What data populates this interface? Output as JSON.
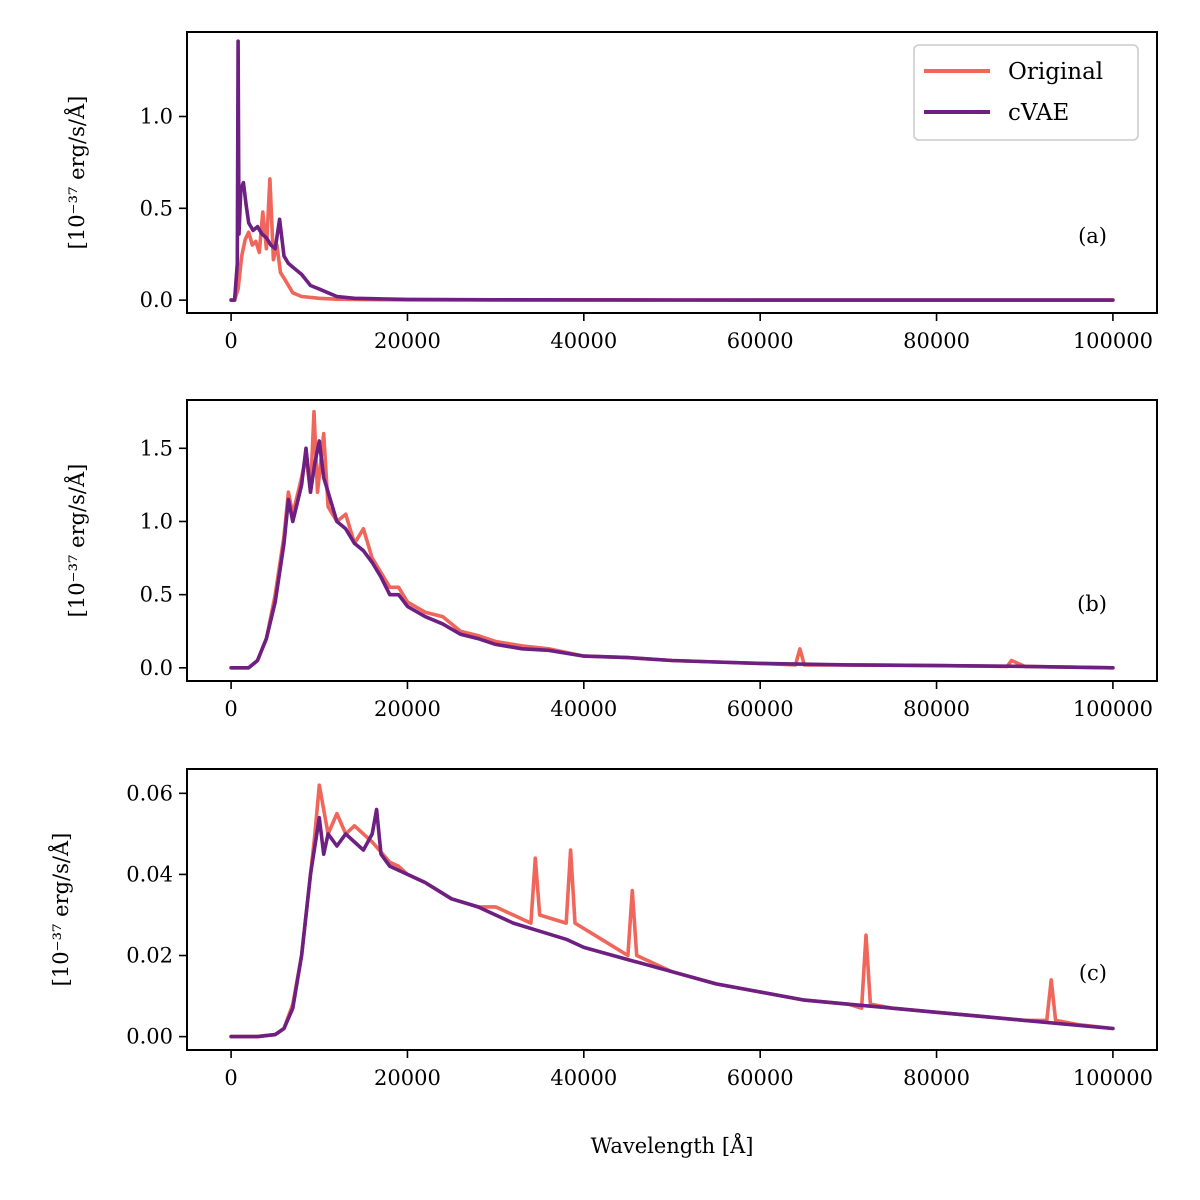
{
  "colors": {
    "original": "#f0665a",
    "cvae": "#6e1f82"
  },
  "legend": {
    "placement": "upper-right of panel (a)",
    "entries": [
      {
        "name": "Original",
        "color": "#f0665a"
      },
      {
        "name": "cVAE",
        "color": "#6e1f82"
      }
    ]
  },
  "chart_data": [
    {
      "type": "line",
      "panel_label": "(a)",
      "ylabel": "[10⁻³⁷ erg/s/Å]",
      "xlabel": "",
      "xlim": [
        -5000,
        105000
      ],
      "ylim": [
        -0.07,
        1.46
      ],
      "xticks": [
        0,
        20000,
        40000,
        60000,
        80000,
        100000
      ],
      "xtick_labels": [
        "0",
        "20000",
        "40000",
        "60000",
        "80000",
        "100000"
      ],
      "yticks": [
        0.0,
        0.5,
        1.0
      ],
      "ytick_labels": [
        "0.0",
        "0.5",
        "1.0"
      ],
      "series": [
        {
          "name": "Original",
          "x": [
            0,
            400,
            800,
            1200,
            1600,
            2000,
            2400,
            2800,
            3200,
            3600,
            4000,
            4400,
            4800,
            5200,
            5600,
            6000,
            7000,
            8000,
            10000,
            12000,
            15000,
            20000,
            30000,
            50000,
            70000,
            100000
          ],
          "y": [
            0,
            0.0,
            0.06,
            0.24,
            0.33,
            0.37,
            0.3,
            0.32,
            0.26,
            0.48,
            0.28,
            0.66,
            0.22,
            0.3,
            0.15,
            0.12,
            0.04,
            0.02,
            0.01,
            0.005,
            0.003,
            0.002,
            0.001,
            0.0,
            0.0,
            0.0
          ]
        },
        {
          "name": "cVAE",
          "x": [
            0,
            400,
            700,
            800,
            900,
            1100,
            1400,
            1700,
            2000,
            2500,
            3000,
            3500,
            4000,
            4500,
            5000,
            5500,
            6000,
            6500,
            7000,
            8000,
            9000,
            10000,
            11000,
            12000,
            14000,
            16000,
            20000,
            30000,
            50000,
            70000,
            100000
          ],
          "y": [
            0,
            0.0,
            0.2,
            1.41,
            0.36,
            0.6,
            0.64,
            0.52,
            0.42,
            0.38,
            0.4,
            0.36,
            0.34,
            0.3,
            0.28,
            0.44,
            0.24,
            0.2,
            0.18,
            0.14,
            0.08,
            0.06,
            0.04,
            0.02,
            0.01,
            0.008,
            0.004,
            0.002,
            0.001,
            0.0,
            0.0
          ]
        }
      ]
    },
    {
      "type": "line",
      "panel_label": "(b)",
      "ylabel": "[10⁻³⁷ erg/s/Å]",
      "xlabel": "",
      "xlim": [
        -5000,
        105000
      ],
      "ylim": [
        -0.09,
        1.83
      ],
      "xticks": [
        0,
        20000,
        40000,
        60000,
        80000,
        100000
      ],
      "xtick_labels": [
        "0",
        "20000",
        "40000",
        "60000",
        "80000",
        "100000"
      ],
      "yticks": [
        0.0,
        0.5,
        1.0,
        1.5
      ],
      "ytick_labels": [
        "0.0",
        "0.5",
        "1.0",
        "1.5"
      ],
      "series": [
        {
          "name": "Original",
          "x": [
            0,
            2000,
            3000,
            4000,
            5000,
            6000,
            6500,
            7000,
            8000,
            8500,
            9000,
            9400,
            9800,
            10500,
            11000,
            12000,
            13000,
            14000,
            15000,
            16000,
            17000,
            18000,
            19000,
            20000,
            22000,
            24000,
            26000,
            28000,
            30000,
            33000,
            36000,
            40000,
            45000,
            50000,
            55000,
            60000,
            64000,
            64500,
            65000,
            70000,
            80000,
            88000,
            88500,
            90000,
            100000
          ],
          "y": [
            0,
            0.0,
            0.05,
            0.2,
            0.5,
            0.9,
            1.2,
            1.05,
            1.3,
            1.45,
            1.2,
            1.75,
            1.2,
            1.6,
            1.1,
            1.0,
            1.05,
            0.85,
            0.95,
            0.75,
            0.65,
            0.55,
            0.55,
            0.45,
            0.38,
            0.35,
            0.25,
            0.22,
            0.18,
            0.15,
            0.13,
            0.08,
            0.07,
            0.05,
            0.04,
            0.03,
            0.02,
            0.13,
            0.02,
            0.02,
            0.015,
            0.01,
            0.05,
            0.01,
            0.0
          ]
        },
        {
          "name": "cVAE",
          "x": [
            0,
            2000,
            3000,
            4000,
            5000,
            6000,
            6500,
            7000,
            8000,
            8500,
            9000,
            9500,
            10000,
            10500,
            11000,
            12000,
            13000,
            14000,
            15000,
            16000,
            17000,
            18000,
            19000,
            20000,
            22000,
            24000,
            26000,
            28000,
            30000,
            33000,
            36000,
            40000,
            45000,
            50000,
            55000,
            60000,
            70000,
            80000,
            90000,
            100000
          ],
          "y": [
            0,
            0.0,
            0.05,
            0.2,
            0.45,
            0.85,
            1.15,
            1.0,
            1.25,
            1.5,
            1.2,
            1.4,
            1.55,
            1.3,
            1.2,
            1.0,
            0.95,
            0.85,
            0.8,
            0.72,
            0.62,
            0.5,
            0.5,
            0.42,
            0.35,
            0.3,
            0.23,
            0.2,
            0.16,
            0.13,
            0.12,
            0.08,
            0.07,
            0.05,
            0.04,
            0.03,
            0.02,
            0.015,
            0.01,
            0.0
          ]
        }
      ]
    },
    {
      "type": "line",
      "panel_label": "(c)",
      "ylabel": "[10⁻³⁷ erg/s/Å]",
      "xlabel": "Wavelength [Å]",
      "xlim": [
        -5000,
        105000
      ],
      "ylim": [
        -0.0033,
        0.066
      ],
      "xticks": [
        0,
        20000,
        40000,
        60000,
        80000,
        100000
      ],
      "xtick_labels": [
        "0",
        "20000",
        "40000",
        "60000",
        "80000",
        "100000"
      ],
      "yticks": [
        0.0,
        0.02,
        0.04,
        0.06
      ],
      "ytick_labels": [
        "0.00",
        "0.02",
        "0.04",
        "0.06"
      ],
      "series": [
        {
          "name": "Original",
          "x": [
            0,
            3000,
            5000,
            6000,
            7000,
            8000,
            9000,
            9500,
            10000,
            11000,
            12000,
            13000,
            14000,
            16000,
            18000,
            19000,
            20000,
            22000,
            25000,
            28000,
            30000,
            32000,
            34000,
            34500,
            35000,
            38000,
            38500,
            39000,
            42000,
            45000,
            45500,
            46000,
            50000,
            55000,
            60000,
            65000,
            70000,
            71500,
            72000,
            72500,
            75000,
            80000,
            85000,
            90000,
            92500,
            93000,
            93500,
            96000,
            100000
          ],
          "y": [
            0,
            0.0,
            0.0005,
            0.002,
            0.008,
            0.02,
            0.04,
            0.05,
            0.062,
            0.05,
            0.055,
            0.05,
            0.052,
            0.048,
            0.043,
            0.042,
            0.04,
            0.038,
            0.034,
            0.032,
            0.032,
            0.03,
            0.028,
            0.044,
            0.03,
            0.028,
            0.046,
            0.028,
            0.024,
            0.02,
            0.036,
            0.02,
            0.016,
            0.013,
            0.011,
            0.009,
            0.008,
            0.007,
            0.025,
            0.008,
            0.007,
            0.006,
            0.005,
            0.004,
            0.004,
            0.014,
            0.004,
            0.003,
            0.002
          ]
        },
        {
          "name": "cVAE",
          "x": [
            0,
            3000,
            5000,
            6000,
            7000,
            8000,
            9000,
            10000,
            10500,
            11000,
            12000,
            13000,
            14000,
            15000,
            16000,
            16500,
            17000,
            18000,
            20000,
            22000,
            25000,
            28000,
            30000,
            32000,
            35000,
            38000,
            40000,
            45000,
            50000,
            55000,
            60000,
            65000,
            70000,
            75000,
            80000,
            85000,
            90000,
            95000,
            100000
          ],
          "y": [
            0,
            0.0,
            0.0005,
            0.002,
            0.007,
            0.02,
            0.04,
            0.054,
            0.045,
            0.05,
            0.047,
            0.05,
            0.048,
            0.046,
            0.05,
            0.056,
            0.045,
            0.042,
            0.04,
            0.038,
            0.034,
            0.032,
            0.03,
            0.028,
            0.026,
            0.024,
            0.022,
            0.019,
            0.016,
            0.013,
            0.011,
            0.009,
            0.008,
            0.007,
            0.006,
            0.005,
            0.004,
            0.003,
            0.002
          ]
        }
      ]
    }
  ]
}
